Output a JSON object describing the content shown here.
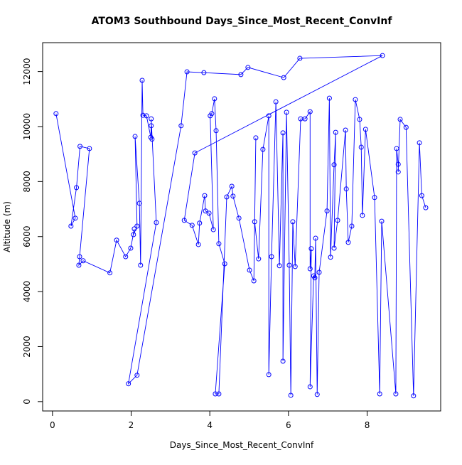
{
  "chart_data": {
    "type": "line",
    "title": "ATOM3 Southbound Days_Since_Most_Recent_ConvInf",
    "x_label": "Days_Since_Most_Recent_ConvInf",
    "y_label": "Altitude (m)",
    "x": [
      0.09,
      0.58,
      0.47,
      0.61,
      0.7,
      0.94,
      0.69,
      0.67,
      0.78,
      1.46,
      1.63,
      1.86,
      1.99,
      2.08,
      2.06,
      2.15,
      2.1,
      2.21,
      2.24,
      2.28,
      2.3,
      2.39,
      2.5,
      2.51,
      2.53,
      2.51,
      2.64,
      1.93,
      2.15,
      3.27,
      3.42,
      3.85,
      4.79,
      4.97,
      5.88,
      6.29,
      8.39,
      3.62,
      3.35,
      3.55,
      3.71,
      3.74,
      3.87,
      3.89,
      3.98,
      4.09,
      4.01,
      4.05,
      4.12,
      4.16,
      4.23,
      4.38,
      4.14,
      4.23,
      4.43,
      4.56,
      4.59,
      4.74,
      5.01,
      5.12,
      5.17,
      5.14,
      5.24,
      5.35,
      5.5,
      5.5,
      5.57,
      5.68,
      5.77,
      5.86,
      5.86,
      5.95,
      6.02,
      6.06,
      6.11,
      6.17,
      6.31,
      6.42,
      6.55,
      6.55,
      6.58,
      6.55,
      6.64,
      6.67,
      6.69,
      6.73,
      6.78,
      6.98,
      7.04,
      7.07,
      7.16,
      7.2,
      7.16,
      7.25,
      7.45,
      7.47,
      7.52,
      7.61,
      7.7,
      7.81,
      7.85,
      7.88,
      7.96,
      8.19,
      8.32,
      8.37,
      8.73,
      8.75,
      8.79,
      8.79,
      8.84,
      8.99,
      9.18,
      9.33,
      9.39,
      9.49
    ],
    "series": [
      {
        "name": "Altitude",
        "color": "#0000ff",
        "values": [
          10470,
          6670,
          6380,
          7780,
          9280,
          9200,
          5270,
          4960,
          5120,
          4680,
          5870,
          5270,
          5580,
          6280,
          6070,
          6380,
          9640,
          7210,
          4960,
          11680,
          10410,
          10390,
          9610,
          10030,
          9540,
          10280,
          6510,
          650,
          960,
          10030,
          11990,
          11960,
          11890,
          12150,
          11780,
          12480,
          12580,
          9040,
          6590,
          6410,
          5710,
          6490,
          7490,
          6930,
          6850,
          6250,
          10390,
          10470,
          11010,
          9850,
          5740,
          5010,
          280,
          280,
          7440,
          7830,
          7470,
          6670,
          4780,
          4390,
          9590,
          6540,
          5190,
          9170,
          10390,
          980,
          5270,
          10900,
          4940,
          9770,
          1470,
          10520,
          4960,
          230,
          6540,
          4910,
          10280,
          10280,
          10540,
          4830,
          5560,
          540,
          4570,
          4500,
          5940,
          260,
          4700,
          6930,
          11030,
          5250,
          8610,
          9790,
          5580,
          6590,
          9870,
          7730,
          5790,
          6380,
          10980,
          10260,
          9250,
          6770,
          9900,
          7420,
          280,
          6560,
          280,
          9200,
          8630,
          8350,
          10260,
          9970,
          210,
          9410,
          7490,
          7050
        ]
      }
    ],
    "xlim": [
      -0.25,
      9.87
    ],
    "ylim": [
      -340,
      13050
    ],
    "xticks": [
      0,
      2,
      4,
      6,
      8
    ],
    "yticks": [
      0,
      2000,
      4000,
      6000,
      8000,
      10000,
      12000
    ]
  }
}
